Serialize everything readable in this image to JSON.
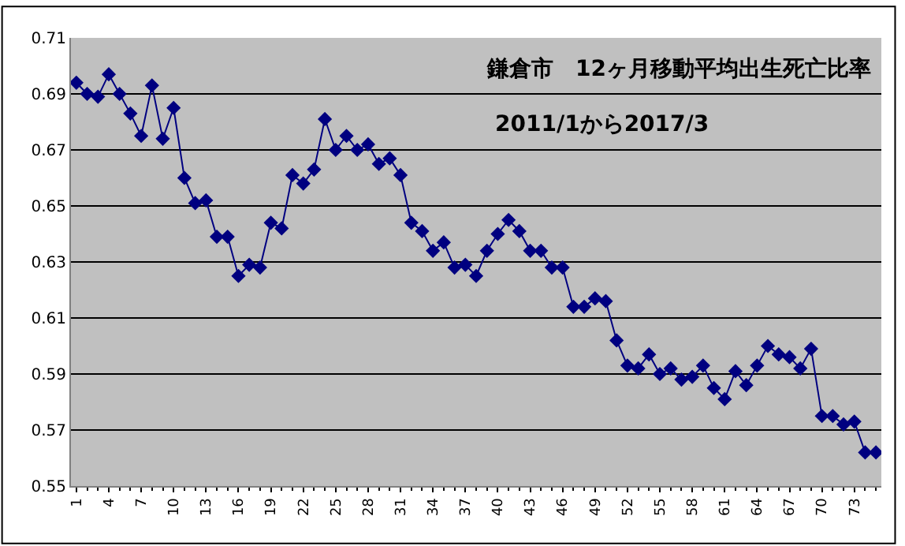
{
  "chart_data": {
    "type": "line",
    "title": "鎌倉市　12ヶ月移動平均出生死亡比率",
    "subtitle": "2011/1から2017/3",
    "x": [
      1,
      2,
      3,
      4,
      5,
      6,
      7,
      8,
      9,
      10,
      11,
      12,
      13,
      14,
      15,
      16,
      17,
      18,
      19,
      20,
      21,
      22,
      23,
      24,
      25,
      26,
      27,
      28,
      29,
      30,
      31,
      32,
      33,
      34,
      35,
      36,
      37,
      38,
      39,
      40,
      41,
      42,
      43,
      44,
      45,
      46,
      47,
      48,
      49,
      50,
      51,
      52,
      53,
      54,
      55,
      56,
      57,
      58,
      59,
      60,
      61,
      62,
      63,
      64,
      65,
      66,
      67,
      68,
      69,
      70,
      71,
      72,
      73,
      74,
      75
    ],
    "series": [
      {
        "color": "#000080",
        "values": [
          0.694,
          0.69,
          0.689,
          0.697,
          0.69,
          0.683,
          0.675,
          0.693,
          0.674,
          0.685,
          0.66,
          0.651,
          0.652,
          0.639,
          0.639,
          0.625,
          0.629,
          0.628,
          0.644,
          0.642,
          0.661,
          0.658,
          0.663,
          0.681,
          0.67,
          0.675,
          0.67,
          0.672,
          0.665,
          0.667,
          0.661,
          0.644,
          0.641,
          0.634,
          0.637,
          0.628,
          0.629,
          0.625,
          0.634,
          0.64,
          0.645,
          0.641,
          0.634,
          0.634,
          0.628,
          0.628,
          0.614,
          0.614,
          0.617,
          0.616,
          0.602,
          0.593,
          0.592,
          0.597,
          0.59,
          0.592,
          0.588,
          0.589,
          0.593,
          0.585,
          0.581,
          0.591,
          0.586,
          0.593,
          0.6,
          0.597,
          0.596,
          0.592,
          0.599,
          0.575,
          0.575,
          0.572,
          0.573,
          0.562,
          0.562
        ]
      }
    ],
    "xlim": [
      0.5,
      75.5
    ],
    "xticks": [
      1,
      4,
      7,
      10,
      13,
      16,
      19,
      22,
      25,
      28,
      31,
      34,
      37,
      40,
      43,
      46,
      49,
      52,
      55,
      58,
      61,
      64,
      67,
      70,
      73
    ],
    "ylim": [
      0.55,
      0.71
    ],
    "yticks": [
      0.55,
      0.57,
      0.59,
      0.61,
      0.63,
      0.65,
      0.67,
      0.69,
      0.71
    ],
    "grid": "y",
    "marker": "diamond",
    "line_style": "solid"
  }
}
